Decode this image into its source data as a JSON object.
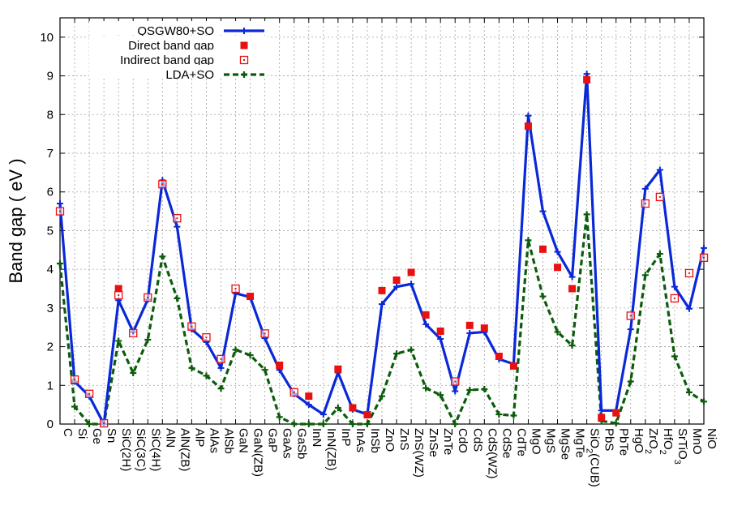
{
  "chart_data": {
    "type": "line",
    "xlabel": "",
    "ylabel": "Band gap ( eV )",
    "ylim": [
      0,
      10.5
    ],
    "yticks": [
      "0",
      "1",
      "2",
      "3",
      "4",
      "5",
      "6",
      "7",
      "8",
      "9",
      "10"
    ],
    "grid": true,
    "legend_position": "top-left",
    "categories": [
      "C",
      "Si",
      "Ge",
      "Sn",
      "SiC(2H)",
      "SiC(3C)",
      "SiC(4H)",
      "AlN",
      "AlN(ZB)",
      "AlP",
      "AlAs",
      "AlSb",
      "GaN",
      "GaN(ZB)",
      "GaP",
      "GaAs",
      "GaSb",
      "InN",
      "InN(ZB)",
      "InP",
      "InAs",
      "InSb",
      "ZnO",
      "ZnS",
      "ZnS(WZ)",
      "ZnSe",
      "ZnTe",
      "CdO",
      "CdS",
      "CdS(WZ)",
      "CdSe",
      "CdTe",
      "MgO",
      "MgS",
      "MgSe",
      "MgTe",
      "SiO2(CUB)",
      "PbS",
      "PbTe",
      "HgO",
      "ZrO2",
      "HfO2",
      "SrTiO3",
      "MnO",
      "NiO"
    ],
    "category_labels": [
      {
        "base": "C",
        "sub": ""
      },
      {
        "base": "Si",
        "sub": ""
      },
      {
        "base": "Ge",
        "sub": ""
      },
      {
        "base": "Sn",
        "sub": ""
      },
      {
        "base": "SiC(2H)",
        "sub": ""
      },
      {
        "base": "SiC(3C)",
        "sub": ""
      },
      {
        "base": "SiC(4H)",
        "sub": ""
      },
      {
        "base": "AlN",
        "sub": ""
      },
      {
        "base": "AlN(ZB)",
        "sub": ""
      },
      {
        "base": "AlP",
        "sub": ""
      },
      {
        "base": "AlAs",
        "sub": ""
      },
      {
        "base": "AlSb",
        "sub": ""
      },
      {
        "base": "GaN",
        "sub": ""
      },
      {
        "base": "GaN(ZB)",
        "sub": ""
      },
      {
        "base": "GaP",
        "sub": ""
      },
      {
        "base": "GaAs",
        "sub": ""
      },
      {
        "base": "GaSb",
        "sub": ""
      },
      {
        "base": "InN",
        "sub": ""
      },
      {
        "base": "InN(ZB)",
        "sub": ""
      },
      {
        "base": "InP",
        "sub": ""
      },
      {
        "base": "InAs",
        "sub": ""
      },
      {
        "base": "InSb",
        "sub": ""
      },
      {
        "base": "ZnO",
        "sub": ""
      },
      {
        "base": "ZnS",
        "sub": ""
      },
      {
        "base": "ZnS(WZ)",
        "sub": ""
      },
      {
        "base": "ZnSe",
        "sub": ""
      },
      {
        "base": "ZnTe",
        "sub": ""
      },
      {
        "base": "CdO",
        "sub": ""
      },
      {
        "base": "CdS",
        "sub": ""
      },
      {
        "base": "CdS(WZ)",
        "sub": ""
      },
      {
        "base": "CdSe",
        "sub": ""
      },
      {
        "base": "CdTe",
        "sub": ""
      },
      {
        "base": "MgO",
        "sub": ""
      },
      {
        "base": "MgS",
        "sub": ""
      },
      {
        "base": "MgSe",
        "sub": ""
      },
      {
        "base": "MgTe",
        "sub": ""
      },
      {
        "base": "SiO",
        "sub": "2",
        "post": "(CUB)"
      },
      {
        "base": "PbS",
        "sub": ""
      },
      {
        "base": "PbTe",
        "sub": ""
      },
      {
        "base": "HgO",
        "sub": ""
      },
      {
        "base": "ZrO",
        "sub": "2"
      },
      {
        "base": "HfO",
        "sub": "2"
      },
      {
        "base": "SrTiO",
        "sub": "3"
      },
      {
        "base": "MnO",
        "sub": ""
      },
      {
        "base": "NiO",
        "sub": ""
      }
    ],
    "series": [
      {
        "name": "QSGW80+SO",
        "style": "line-plus",
        "color": "#0a28d8",
        "values": [
          5.7,
          1.1,
          0.72,
          0.0,
          3.2,
          2.38,
          3.22,
          6.3,
          5.1,
          2.45,
          2.12,
          1.45,
          3.38,
          3.28,
          2.22,
          1.4,
          0.78,
          0.5,
          0.25,
          1.33,
          0.38,
          0.25,
          3.1,
          3.55,
          3.62,
          2.58,
          2.2,
          0.85,
          2.35,
          2.38,
          1.68,
          1.55,
          7.97,
          5.5,
          4.45,
          3.8,
          9.05,
          0.35,
          0.35,
          2.45,
          6.08,
          6.57,
          3.55,
          2.98,
          4.55
        ]
      },
      {
        "name": "Direct band gap",
        "style": "filled-square",
        "color": "#e81010",
        "points": [
          [
            4,
            3.5
          ],
          [
            13,
            3.3
          ],
          [
            15,
            1.52
          ],
          [
            17,
            0.72
          ],
          [
            19,
            1.42
          ],
          [
            20,
            0.42
          ],
          [
            21,
            0.24
          ],
          [
            22,
            3.45
          ],
          [
            23,
            3.72
          ],
          [
            24,
            3.92
          ],
          [
            25,
            2.82
          ],
          [
            26,
            2.4
          ],
          [
            28,
            2.55
          ],
          [
            29,
            2.48
          ],
          [
            30,
            1.75
          ],
          [
            31,
            1.5
          ],
          [
            32,
            7.7
          ],
          [
            33,
            4.52
          ],
          [
            34,
            4.05
          ],
          [
            35,
            3.5
          ],
          [
            36,
            8.9
          ],
          [
            37,
            0.17
          ],
          [
            38,
            0.29
          ]
        ]
      },
      {
        "name": "Indirect band gap",
        "style": "open-square",
        "color": "#e81010",
        "points": [
          [
            0,
            5.5
          ],
          [
            1,
            1.15
          ],
          [
            2,
            0.78
          ],
          [
            3,
            0.02
          ],
          [
            4,
            3.33
          ],
          [
            5,
            2.35
          ],
          [
            6,
            3.27
          ],
          [
            7,
            6.2
          ],
          [
            8,
            5.32
          ],
          [
            9,
            2.52
          ],
          [
            10,
            2.24
          ],
          [
            11,
            1.68
          ],
          [
            12,
            3.5
          ],
          [
            14,
            2.34
          ],
          [
            16,
            0.82
          ],
          [
            27,
            1.1
          ],
          [
            39,
            2.8
          ],
          [
            40,
            5.7
          ],
          [
            41,
            5.87
          ],
          [
            42,
            3.25
          ],
          [
            43,
            3.9
          ],
          [
            44,
            4.3
          ]
        ]
      },
      {
        "name": "LDA+SO",
        "style": "dashed-plus",
        "color": "#0c5c0c",
        "values": [
          4.15,
          0.45,
          0.0,
          0.0,
          2.15,
          1.32,
          2.18,
          4.33,
          3.25,
          1.45,
          1.25,
          0.92,
          1.92,
          1.78,
          1.4,
          0.18,
          0.0,
          0.0,
          0.0,
          0.42,
          0.0,
          0.0,
          0.72,
          1.82,
          1.92,
          0.93,
          0.75,
          0.0,
          0.88,
          0.9,
          0.25,
          0.22,
          4.75,
          3.3,
          2.38,
          2.03,
          5.42,
          0.08,
          0.02,
          1.1,
          3.85,
          4.4,
          1.75,
          0.82,
          0.58
        ]
      }
    ]
  }
}
